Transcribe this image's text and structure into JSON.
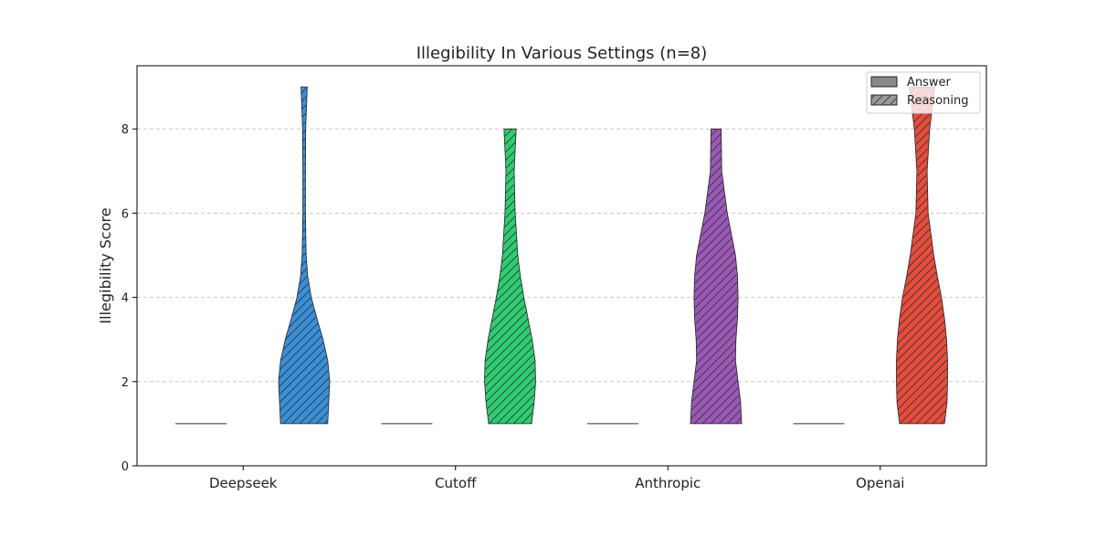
{
  "chart_data": {
    "type": "violin",
    "title": "Illegibility In Various Settings (n=8)",
    "xlabel": "",
    "ylabel": "Illegibility Score",
    "ylim": [
      0,
      9.5
    ],
    "yticks": [
      0,
      2,
      4,
      6,
      8
    ],
    "grid": true,
    "legend_position": "top-right",
    "categories": [
      "Deepseek",
      "Cutoff",
      "Anthropic",
      "Openai"
    ],
    "series": [
      {
        "name": "Answer",
        "style": "solid",
        "color": "#888888",
        "min": [
          1,
          1,
          1,
          1
        ],
        "max": [
          1,
          1,
          1,
          1
        ]
      },
      {
        "name": "Reasoning",
        "style": "hatched",
        "color": "#999999",
        "colors": [
          "#3a8fd9",
          "#2ecc71",
          "#9b59b6",
          "#e74c3c"
        ],
        "min": [
          1,
          1,
          1,
          1
        ],
        "max": [
          9,
          8,
          8,
          9
        ],
        "density": [
          [
            [
              1,
              0.92
            ],
            [
              1.5,
              0.96
            ],
            [
              2,
              1.0
            ],
            [
              2.5,
              0.92
            ],
            [
              3,
              0.74
            ],
            [
              3.5,
              0.5
            ],
            [
              4,
              0.28
            ],
            [
              4.5,
              0.14
            ],
            [
              5,
              0.08
            ],
            [
              6,
              0.05
            ],
            [
              7,
              0.05
            ],
            [
              8,
              0.06
            ],
            [
              9,
              0.12
            ]
          ],
          [
            [
              1,
              0.84
            ],
            [
              1.5,
              0.94
            ],
            [
              2,
              1.0
            ],
            [
              2.5,
              0.98
            ],
            [
              3,
              0.86
            ],
            [
              3.5,
              0.7
            ],
            [
              4,
              0.54
            ],
            [
              4.5,
              0.4
            ],
            [
              5,
              0.3
            ],
            [
              6,
              0.2
            ],
            [
              7,
              0.16
            ],
            [
              8,
              0.24
            ]
          ],
          [
            [
              1,
              1.0
            ],
            [
              1.5,
              0.96
            ],
            [
              2,
              0.86
            ],
            [
              2.5,
              0.76
            ],
            [
              3,
              0.78
            ],
            [
              3.5,
              0.84
            ],
            [
              4,
              0.86
            ],
            [
              4.5,
              0.84
            ],
            [
              5,
              0.76
            ],
            [
              6,
              0.44
            ],
            [
              7,
              0.22
            ],
            [
              8,
              0.2
            ]
          ],
          [
            [
              1,
              0.88
            ],
            [
              1.5,
              0.98
            ],
            [
              2,
              1.0
            ],
            [
              2.5,
              1.0
            ],
            [
              3,
              0.96
            ],
            [
              3.5,
              0.88
            ],
            [
              4,
              0.76
            ],
            [
              4.5,
              0.6
            ],
            [
              5,
              0.46
            ],
            [
              6,
              0.24
            ],
            [
              7,
              0.2
            ],
            [
              8,
              0.3
            ],
            [
              9,
              0.5
            ]
          ]
        ]
      }
    ]
  }
}
